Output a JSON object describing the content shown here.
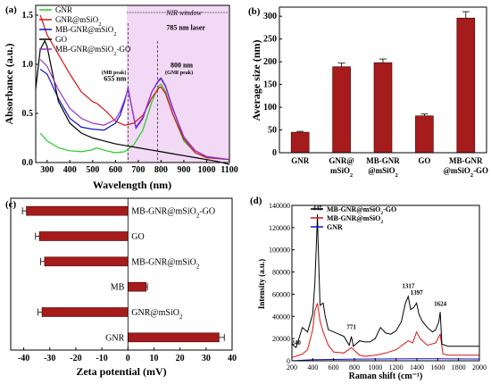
{
  "panels": {
    "a": "(a)",
    "b": "(b)",
    "c": "(c)",
    "d": "(d)"
  },
  "chart_data": [
    {
      "id": "a",
      "type": "line",
      "xlabel": "Wavelength (nm)",
      "ylabel": "Absorbance (a.u.)",
      "xlim": [
        250,
        1100
      ],
      "ylim": [
        0,
        1.6
      ],
      "xticks": [
        300,
        400,
        500,
        600,
        700,
        800,
        900,
        1000,
        1100
      ],
      "yticks": [
        0.0,
        0.5,
        1.0,
        1.5
      ],
      "nir_window": {
        "label": "NIR window",
        "range": [
          650,
          1100
        ]
      },
      "annotations": {
        "mb_peak_sub": "(MB peak)",
        "mb_peak": "655 nm",
        "laser": "785 nm laser",
        "gnr_peak": "800 nm",
        "gnr_peak_sub": "(GNR peak)"
      },
      "series": [
        {
          "name": "GNR",
          "color": "#22cc22",
          "x": [
            270,
            300,
            350,
            400,
            450,
            500,
            515,
            560,
            600,
            640,
            680,
            720,
            760,
            790,
            800,
            820,
            850,
            900,
            950,
            1000,
            1100
          ],
          "y": [
            0.3,
            0.22,
            0.15,
            0.12,
            0.11,
            0.13,
            0.15,
            0.12,
            0.1,
            0.11,
            0.18,
            0.33,
            0.62,
            0.78,
            0.8,
            0.72,
            0.5,
            0.22,
            0.1,
            0.05,
            0.03
          ]
        },
        {
          "name": "GNR@mSiO2",
          "color": "#dd1111",
          "x": [
            270,
            300,
            350,
            400,
            450,
            500,
            520,
            560,
            600,
            640,
            680,
            720,
            760,
            790,
            800,
            820,
            850,
            900,
            950,
            1000,
            1100
          ],
          "y": [
            1.5,
            1.3,
            1.1,
            0.9,
            0.72,
            0.62,
            0.6,
            0.52,
            0.42,
            0.38,
            0.4,
            0.48,
            0.66,
            0.76,
            0.77,
            0.7,
            0.5,
            0.24,
            0.1,
            0.05,
            0.03
          ]
        },
        {
          "name": "MB-GNR@mSiO2",
          "color": "#1111cc",
          "x": [
            270,
            300,
            350,
            400,
            450,
            500,
            550,
            600,
            620,
            640,
            655,
            670,
            690,
            720,
            760,
            790,
            800,
            820,
            850,
            900,
            950,
            1000,
            1100
          ],
          "y": [
            0.95,
            0.9,
            0.65,
            0.45,
            0.36,
            0.34,
            0.33,
            0.4,
            0.48,
            0.62,
            0.76,
            0.58,
            0.35,
            0.45,
            0.72,
            0.84,
            0.86,
            0.78,
            0.56,
            0.26,
            0.12,
            0.06,
            0.03
          ]
        },
        {
          "name": "GO",
          "color": "#000000",
          "x": [
            250,
            270,
            290,
            300,
            320,
            350,
            400,
            450,
            500,
            550,
            600,
            650,
            700,
            750,
            800,
            850,
            900,
            950,
            1000,
            1050,
            1100
          ],
          "y": [
            0.75,
            1.15,
            1.24,
            1.18,
            0.95,
            0.62,
            0.4,
            0.3,
            0.25,
            0.22,
            0.19,
            0.17,
            0.15,
            0.13,
            0.11,
            0.09,
            0.07,
            0.05,
            0.03,
            0.01,
            -0.02
          ]
        },
        {
          "name": "MB-GNR@mSiO2-GO",
          "color": "#9933cc",
          "x": [
            270,
            300,
            350,
            400,
            450,
            500,
            550,
            600,
            620,
            640,
            655,
            670,
            690,
            720,
            760,
            790,
            800,
            820,
            850,
            900,
            950,
            1000,
            1100
          ],
          "y": [
            1.05,
            0.98,
            0.74,
            0.55,
            0.45,
            0.4,
            0.38,
            0.44,
            0.52,
            0.64,
            0.75,
            0.58,
            0.36,
            0.46,
            0.72,
            0.83,
            0.85,
            0.77,
            0.55,
            0.26,
            0.12,
            0.06,
            0.03
          ]
        }
      ]
    },
    {
      "id": "b",
      "type": "bar",
      "ylabel": "Average size (nm)",
      "ylim": [
        0,
        320
      ],
      "yticks": [
        0,
        50,
        100,
        150,
        200,
        250,
        300
      ],
      "categories": [
        [
          "GNR"
        ],
        [
          "GNR@",
          "mSiO2"
        ],
        [
          "MB-GNR",
          "@mSiO2"
        ],
        [
          "GO"
        ],
        [
          "MB-GNR",
          "@mSiO2-GO"
        ]
      ],
      "values": [
        45,
        189,
        198,
        81,
        296
      ],
      "errors": [
        2,
        8,
        8,
        4,
        14
      ],
      "color": "#a61b1b"
    },
    {
      "id": "c",
      "type": "bar",
      "orientation": "horizontal",
      "xlabel": "Zeta potential (mV)",
      "xlim": [
        -45,
        40
      ],
      "xticks": [
        -40,
        -30,
        -20,
        -10,
        0,
        10,
        20,
        30,
        40
      ],
      "categories": [
        "GNR",
        "GNR@mSiO2",
        "MB",
        "MB-GNR@mSiO2",
        "GO",
        "MB-GNR@mSiO2-GO"
      ],
      "values": [
        35,
        -33,
        7,
        -32,
        -34,
        -39
      ],
      "errors": [
        2,
        1.5,
        0.5,
        1.5,
        1.5,
        1.5
      ],
      "color": "#a61b1b"
    },
    {
      "id": "d",
      "type": "line",
      "xlabel": "Raman shift (cm⁻¹)",
      "ylabel": "Intensity (a.u.)",
      "xlim": [
        200,
        2000
      ],
      "ylim": [
        0,
        140000
      ],
      "xticks": [
        200,
        400,
        600,
        800,
        1000,
        1200,
        1400,
        1600,
        1800,
        2000
      ],
      "yticks": [
        0,
        20000,
        40000,
        60000,
        80000,
        100000,
        120000,
        140000
      ],
      "peak_labels": [
        {
          "x": 240,
          "y": 13000,
          "text": "240"
        },
        {
          "x": 445,
          "y": 134000,
          "text": "445"
        },
        {
          "x": 771,
          "y": 27000,
          "text": "771"
        },
        {
          "x": 1317,
          "y": 64000,
          "text": "1317"
        },
        {
          "x": 1397,
          "y": 58000,
          "text": "1397"
        },
        {
          "x": 1624,
          "y": 48000,
          "text": "1624"
        }
      ],
      "series": [
        {
          "name": "MB-GNR@mSiO2-GO",
          "color": "#000000",
          "x": [
            200,
            240,
            260,
            300,
            350,
            400,
            420,
            440,
            445,
            450,
            470,
            500,
            520,
            550,
            600,
            650,
            700,
            750,
            771,
            790,
            850,
            900,
            950,
            1000,
            1050,
            1100,
            1150,
            1200,
            1250,
            1290,
            1317,
            1340,
            1370,
            1397,
            1420,
            1450,
            1500,
            1550,
            1580,
            1610,
            1624,
            1640,
            1700,
            1800,
            1900,
            2000
          ],
          "y": [
            15000,
            12000,
            18000,
            30000,
            26000,
            42000,
            70000,
            118000,
            132000,
            110000,
            50000,
            52000,
            40000,
            28000,
            26000,
            24000,
            22000,
            14000,
            22000,
            13000,
            18000,
            17000,
            17000,
            20000,
            30000,
            25000,
            24000,
            27000,
            35000,
            52000,
            58000,
            46000,
            48000,
            52000,
            42000,
            36000,
            30000,
            26000,
            28000,
            35000,
            44000,
            15000,
            13000,
            13000,
            13000,
            13000
          ]
        },
        {
          "name": "MB-GNR@mSiO2",
          "color": "#dd1111",
          "x": [
            200,
            300,
            350,
            400,
            420,
            445,
            470,
            500,
            550,
            600,
            700,
            771,
            850,
            900,
            1000,
            1100,
            1200,
            1317,
            1360,
            1397,
            1430,
            1500,
            1580,
            1624,
            1650,
            1700,
            1800,
            2000
          ],
          "y": [
            3000,
            6000,
            10000,
            28000,
            45000,
            52000,
            36000,
            26000,
            14000,
            8000,
            7000,
            12000,
            5000,
            4000,
            5000,
            7000,
            10000,
            18000,
            16000,
            26000,
            20000,
            14000,
            16000,
            24000,
            6000,
            5000,
            5000,
            5000
          ]
        },
        {
          "name": "GNR",
          "color": "#1111cc",
          "x": [
            200,
            400,
            600,
            800,
            1000,
            1200,
            1400,
            1600,
            1800,
            2000
          ],
          "y": [
            0,
            1000,
            1200,
            1500,
            1600,
            1700,
            1800,
            1800,
            1700,
            1600
          ]
        }
      ]
    }
  ]
}
